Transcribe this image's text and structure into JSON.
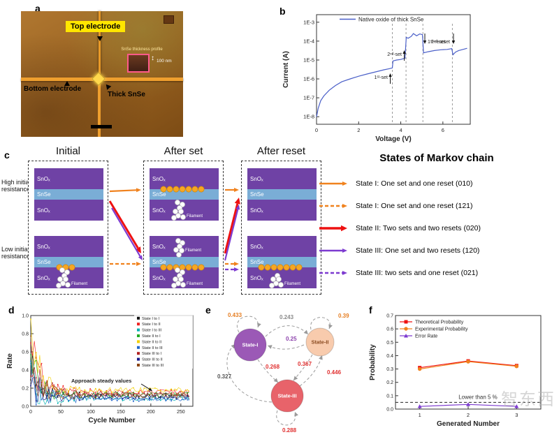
{
  "figure": {
    "panel_labels": {
      "a": "a",
      "b": "b",
      "c": "c",
      "d": "d",
      "e": "e",
      "f": "f"
    }
  },
  "watermark": "智东西",
  "panel_a": {
    "labels": {
      "top_electrode": "Top electrode",
      "bottom_electrode": "Bottom electrode",
      "thick_snse": "Thick SnSe",
      "profile": "SnSe thickness profile",
      "scale": "100 nm"
    },
    "icons": {
      "updown": "↕"
    }
  },
  "panel_b": {
    "chart_data": {
      "type": "line",
      "legend": "Native oxide of thick SnSe",
      "xlabel": "Voltage (V)",
      "ylabel": "Current (A)",
      "xticks": [
        0,
        2,
        4,
        6
      ],
      "ytick_labels": [
        "1E-3",
        "1E-4",
        "1E-5",
        "1E-6",
        "1E-7",
        "1E-8"
      ],
      "xlim": [
        0,
        7.3
      ],
      "ylog_lim": [
        -8.4,
        -2.6
      ],
      "line_color": "#4a5fc8",
      "event_voltages": [
        3.6,
        4.25,
        5.05,
        6.45
      ],
      "annotations": [
        "1ˢᵗ-set",
        "2ⁿᵈ-set",
        "1ˢᵗ-reset",
        "2ⁿᵈ-reset"
      ],
      "points": [
        [
          0,
          -8.0
        ],
        [
          0.08,
          -7.55
        ],
        [
          0.2,
          -7.15
        ],
        [
          0.35,
          -6.9
        ],
        [
          0.6,
          -6.6
        ],
        [
          0.9,
          -6.35
        ],
        [
          1.2,
          -6.15
        ],
        [
          1.6,
          -6.0
        ],
        [
          2.0,
          -5.86
        ],
        [
          2.4,
          -5.74
        ],
        [
          2.8,
          -5.63
        ],
        [
          3.2,
          -5.52
        ],
        [
          3.45,
          -5.46
        ],
        [
          3.6,
          -5.42
        ],
        [
          3.63,
          -5.05
        ],
        [
          3.8,
          -5.0
        ],
        [
          4.0,
          -4.97
        ],
        [
          4.2,
          -4.9
        ],
        [
          4.26,
          -3.8
        ],
        [
          4.35,
          -3.85
        ],
        [
          4.5,
          -3.75
        ],
        [
          4.6,
          -3.6
        ],
        [
          4.75,
          -3.72
        ],
        [
          4.9,
          -3.62
        ],
        [
          5.03,
          -3.66
        ],
        [
          5.08,
          -4.62
        ],
        [
          5.3,
          -4.56
        ],
        [
          5.6,
          -4.5
        ],
        [
          5.9,
          -4.46
        ],
        [
          6.2,
          -4.44
        ],
        [
          6.42,
          -4.4
        ],
        [
          6.48,
          -4.72
        ],
        [
          6.6,
          -4.58
        ],
        [
          6.75,
          -4.5
        ],
        [
          6.95,
          -4.44
        ],
        [
          7.15,
          -4.38
        ]
      ]
    }
  },
  "panel_c": {
    "columns": [
      "Initial",
      "After set",
      "After reset"
    ],
    "row_labels": [
      "High initial resistance",
      "Low initial resistance"
    ],
    "layer_labels": {
      "snox": "SnOₓ",
      "snse": "SnSe"
    },
    "filament_label": "Filament",
    "arrow_colors": {
      "orange": "#f0821e",
      "red": "#ee1111",
      "purple": "#7d3bd0"
    },
    "legend": {
      "title": "States of Markov chain",
      "items": [
        {
          "color": "#f0821e",
          "dash": false,
          "label": "State I: One set and one reset (010)"
        },
        {
          "color": "#f0821e",
          "dash": true,
          "label": "State I: One set and one reset (121)"
        },
        {
          "color": "#ee1111",
          "dash": false,
          "label": "State II: Two sets and two resets (020)"
        },
        {
          "color": "#7d3bd0",
          "dash": false,
          "label": "State III: One set and two resets (120)"
        },
        {
          "color": "#7d3bd0",
          "dash": true,
          "label": "State III: two sets and one reset (021)"
        }
      ]
    }
  },
  "panel_d": {
    "chart_data": {
      "type": "scatter",
      "xlabel": "Cycle Number",
      "ylabel": "Rate",
      "xlim": [
        0,
        270
      ],
      "ylim": [
        0,
        1.0
      ],
      "xticks": [
        0,
        50,
        100,
        150,
        200,
        250
      ],
      "yticks": [
        0.0,
        0.2,
        0.4,
        0.6,
        0.8,
        1.0
      ],
      "annotation": "Approach steady values",
      "series": [
        {
          "name": "State I to I",
          "color": "#111111",
          "start": 0.45,
          "steady": 0.12
        },
        {
          "name": "State I to II",
          "color": "#ee2222",
          "start": 0.8,
          "steady": 0.16
        },
        {
          "name": "State I to III",
          "color": "#00b0b0",
          "start": 0.3,
          "steady": 0.09
        },
        {
          "name": "State II to I",
          "color": "#22aa22",
          "start": 0.6,
          "steady": 0.13
        },
        {
          "name": "State II to II",
          "color": "#f2d000",
          "start": 0.9,
          "steady": 0.18
        },
        {
          "name": "State II to III",
          "color": "#2266cc",
          "start": 0.25,
          "steady": 0.08
        },
        {
          "name": "State III to I",
          "color": "#b22222",
          "start": 0.55,
          "steady": 0.14
        },
        {
          "name": "State III to II",
          "color": "#1a1a8c",
          "start": 0.35,
          "steady": 0.1
        },
        {
          "name": "State III to III",
          "color": "#8b4513",
          "start": 0.5,
          "steady": 0.12
        }
      ]
    }
  },
  "panel_e": {
    "chart_data": {
      "type": "diagram",
      "nodes": [
        {
          "label": "State-I",
          "color": "#9b59b6",
          "text_color": "#ffffff"
        },
        {
          "label": "State-II",
          "color": "#f8cbad",
          "text_color": "#8a4b21"
        },
        {
          "label": "State-III",
          "color": "#e8636a",
          "text_color": "#ffffff"
        }
      ],
      "probabilities": [
        {
          "value": "0.433",
          "color": "#e67e22"
        },
        {
          "value": "0.243",
          "color": "#8a8a8a"
        },
        {
          "value": "0.39",
          "color": "#e67e22"
        },
        {
          "value": "0.25",
          "color": "#8e44ad"
        },
        {
          "value": "0.268",
          "color": "#e03030"
        },
        {
          "value": "0.367",
          "color": "#e03030"
        },
        {
          "value": "0.446",
          "color": "#e03030"
        },
        {
          "value": "0.327",
          "color": "#555555"
        },
        {
          "value": "0.288",
          "color": "#e03030"
        }
      ]
    }
  },
  "panel_f": {
    "chart_data": {
      "type": "line",
      "xlabel": "Generated Number",
      "ylabel": "Probability",
      "xticks": [
        1,
        2,
        3
      ],
      "yticks": [
        0.0,
        0.1,
        0.2,
        0.3,
        0.4,
        0.5,
        0.6,
        0.7
      ],
      "ylim": [
        0,
        0.7
      ],
      "threshold": 0.05,
      "threshold_label": "Lower than 5 %",
      "series": [
        {
          "name": "Theoretical Probability",
          "color": "#ee1111",
          "marker": "square",
          "values": [
            0.31,
            0.36,
            0.325
          ]
        },
        {
          "name": "Experimental Probability",
          "color": "#f0821e",
          "marker": "circle",
          "values": [
            0.3,
            0.355,
            0.32
          ]
        },
        {
          "name": "Error Rate",
          "color": "#7d3bd0",
          "marker": "triangle",
          "values": [
            0.02,
            0.035,
            0.02
          ]
        }
      ]
    }
  }
}
